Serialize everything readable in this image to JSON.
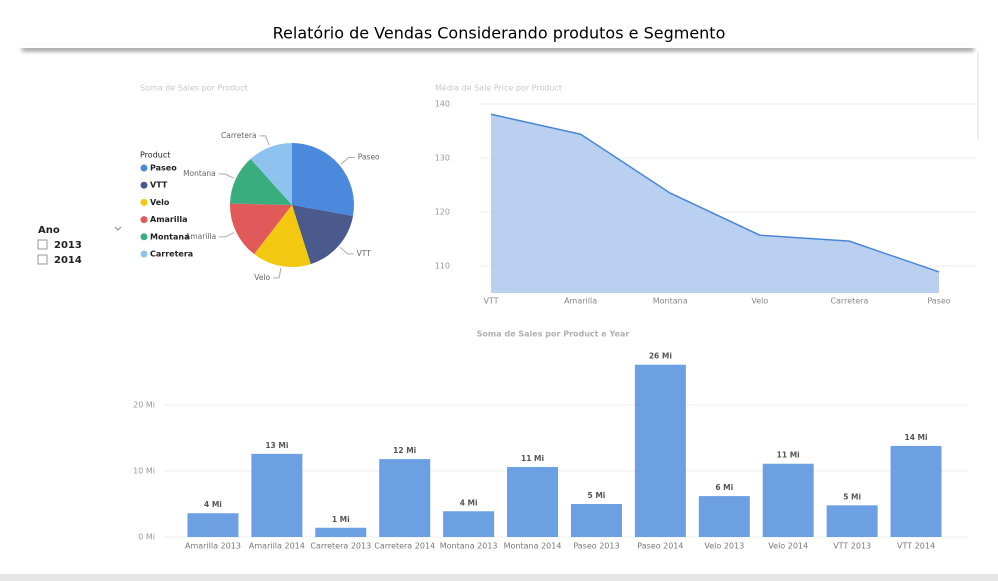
{
  "header": {
    "title": "Relatório de Vendas Considerando produtos e Segmento"
  },
  "slicer": {
    "title": "Ano",
    "options": [
      "2013",
      "2014"
    ]
  },
  "chart_data": [
    {
      "type": "pie",
      "title": "Soma de Sales por Product",
      "legend_title": "Product",
      "categories": [
        "Paseo",
        "VTT",
        "Velo",
        "Amarilla",
        "Montana",
        "Carretera"
      ],
      "values": [
        33.0,
        20.5,
        18.2,
        17.7,
        15.4,
        13.8
      ],
      "colors": [
        "#4a89dc",
        "#4a5a8c",
        "#f2c811",
        "#e05a5a",
        "#3aad7f",
        "#8fc3ef"
      ]
    },
    {
      "type": "area",
      "title": "Média de Sale Price por Product",
      "categories": [
        "VTT",
        "Amarilla",
        "Montana",
        "Velo",
        "Carretera",
        "Paseo"
      ],
      "values": [
        138.1,
        134.4,
        123.5,
        115.7,
        114.6,
        108.9
      ],
      "color": "#4a86d8",
      "ylim": [
        105,
        141
      ],
      "yticks": [
        110,
        120,
        130,
        140
      ],
      "grid": true
    },
    {
      "type": "bar",
      "title": "Soma de Sales por Product e Year",
      "categories": [
        "Amarilla 2013",
        "Amarilla 2014",
        "Carretera 2013",
        "Carretera 2014",
        "Montana 2013",
        "Montana 2014",
        "Paseo 2013",
        "Paseo 2014",
        "Velo 2013",
        "Velo 2014",
        "VTT 2013",
        "VTT 2014"
      ],
      "values": [
        3.6,
        12.6,
        1.4,
        11.8,
        3.9,
        10.6,
        5.0,
        26.1,
        6.2,
        11.1,
        4.8,
        13.8
      ],
      "value_labels": [
        "4 Mi",
        "13 Mi",
        "1 Mi",
        "12 Mi",
        "4 Mi",
        "11 Mi",
        "5 Mi",
        "26 Mi",
        "6 Mi",
        "11 Mi",
        "5 Mi",
        "14 Mi"
      ],
      "color": "#6ca0e2",
      "ylim": [
        0,
        27
      ],
      "yticks": [
        {
          "value": 0,
          "label": "0 Mi"
        },
        {
          "value": 10,
          "label": "10 Mi"
        },
        {
          "value": 20,
          "label": "20 Mi"
        }
      ],
      "grid": true
    }
  ]
}
